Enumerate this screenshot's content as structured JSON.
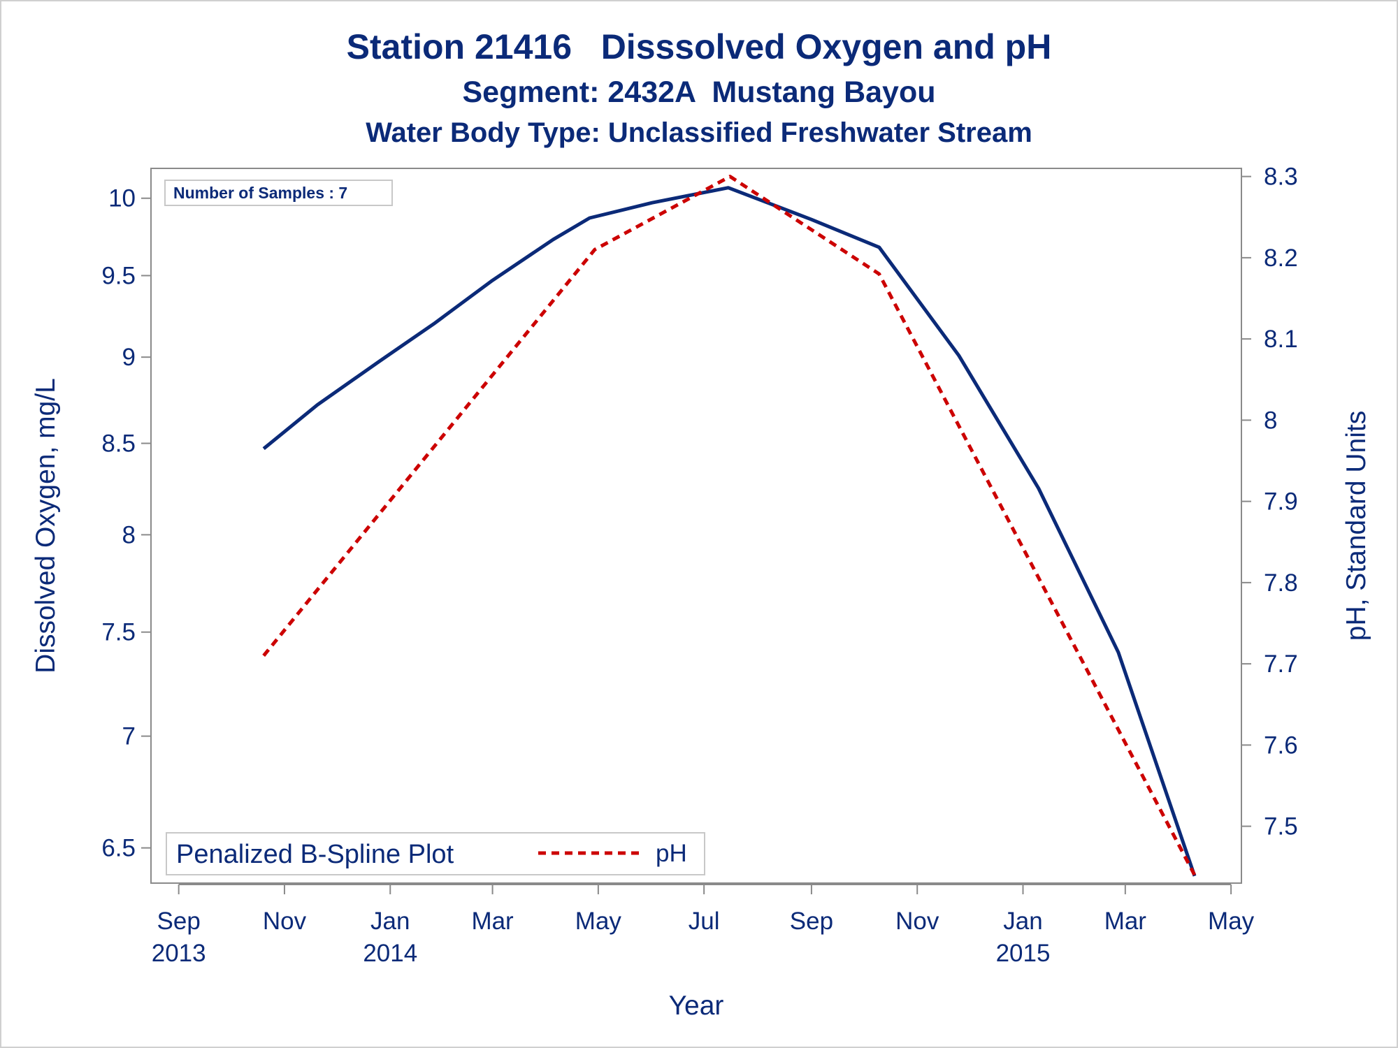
{
  "chart_data": {
    "type": "line",
    "title": "Station 21416   Disssolved Oxygen and pH",
    "subtitle": "Segment: 2432A  Mustang Bayou",
    "subtitle2": "Water Body Type: Unclassified Freshwater Stream",
    "xlabel": "Year",
    "ylabel": "Dissolved Oxygen, mg/L",
    "y2label": "pH, Standard Units",
    "inset": "Number of Samples : 7",
    "legend_title": "Penalized B-Spline Plot",
    "legend_position": "bottom-left",
    "grid": false,
    "x_ticks": [
      {
        "date": "2013-09-01",
        "label": "Sep",
        "year": "2013"
      },
      {
        "date": "2013-11-01",
        "label": "Nov",
        "year": ""
      },
      {
        "date": "2014-01-01",
        "label": "Jan",
        "year": "2014"
      },
      {
        "date": "2014-03-01",
        "label": "Mar",
        "year": ""
      },
      {
        "date": "2014-05-01",
        "label": "May",
        "year": ""
      },
      {
        "date": "2014-07-01",
        "label": "Jul",
        "year": ""
      },
      {
        "date": "2014-09-01",
        "label": "Sep",
        "year": ""
      },
      {
        "date": "2014-11-01",
        "label": "Nov",
        "year": ""
      },
      {
        "date": "2015-01-01",
        "label": "Jan",
        "year": "2015"
      },
      {
        "date": "2015-03-01",
        "label": "Mar",
        "year": ""
      },
      {
        "date": "2015-05-01",
        "label": "May",
        "year": ""
      }
    ],
    "xlim": [
      "2013-08-16",
      "2015-05-07"
    ],
    "y_left": {
      "scale": "log",
      "ticks": [
        "6.5",
        "7",
        "7.5",
        "8",
        "8.5",
        "9",
        "9.5",
        "10"
      ],
      "range": [
        6.35,
        10.2
      ],
      "color": "#0b2a78"
    },
    "y_right": {
      "scale": "linear",
      "ticks": [
        "7.5",
        "7.6",
        "7.7",
        "7.8",
        "7.9",
        "8",
        "8.1",
        "8.2",
        "8.3"
      ],
      "range": [
        7.43,
        8.31
      ]
    },
    "series": [
      {
        "name": "",
        "axis": "left",
        "style": "solid",
        "color": "#0b2a78",
        "points": [
          {
            "x": "2013-10-20",
            "y": 8.47
          },
          {
            "x": "2013-11-20",
            "y": 8.72
          },
          {
            "x": "2013-12-25",
            "y": 8.97
          },
          {
            "x": "2014-01-26",
            "y": 9.2
          },
          {
            "x": "2014-03-01",
            "y": 9.47
          },
          {
            "x": "2014-04-05",
            "y": 9.73
          },
          {
            "x": "2014-04-26",
            "y": 9.87
          },
          {
            "x": "2014-06-01",
            "y": 9.97
          },
          {
            "x": "2014-07-15",
            "y": 10.07
          },
          {
            "x": "2014-09-01",
            "y": 9.86
          },
          {
            "x": "2014-10-10",
            "y": 9.68
          },
          {
            "x": "2014-11-25",
            "y": 9.01
          },
          {
            "x": "2015-01-10",
            "y": 8.25
          },
          {
            "x": "2015-02-25",
            "y": 7.4
          },
          {
            "x": "2015-04-10",
            "y": 6.38
          }
        ]
      },
      {
        "name": "pH",
        "axis": "right",
        "style": "dashed",
        "color": "#cc0000",
        "points": [
          {
            "x": "2013-10-20",
            "y": 7.71
          },
          {
            "x": "2014-04-29",
            "y": 8.21
          },
          {
            "x": "2014-07-16",
            "y": 8.3
          },
          {
            "x": "2014-10-10",
            "y": 8.18
          },
          {
            "x": "2015-04-10",
            "y": 7.44
          }
        ]
      }
    ]
  }
}
